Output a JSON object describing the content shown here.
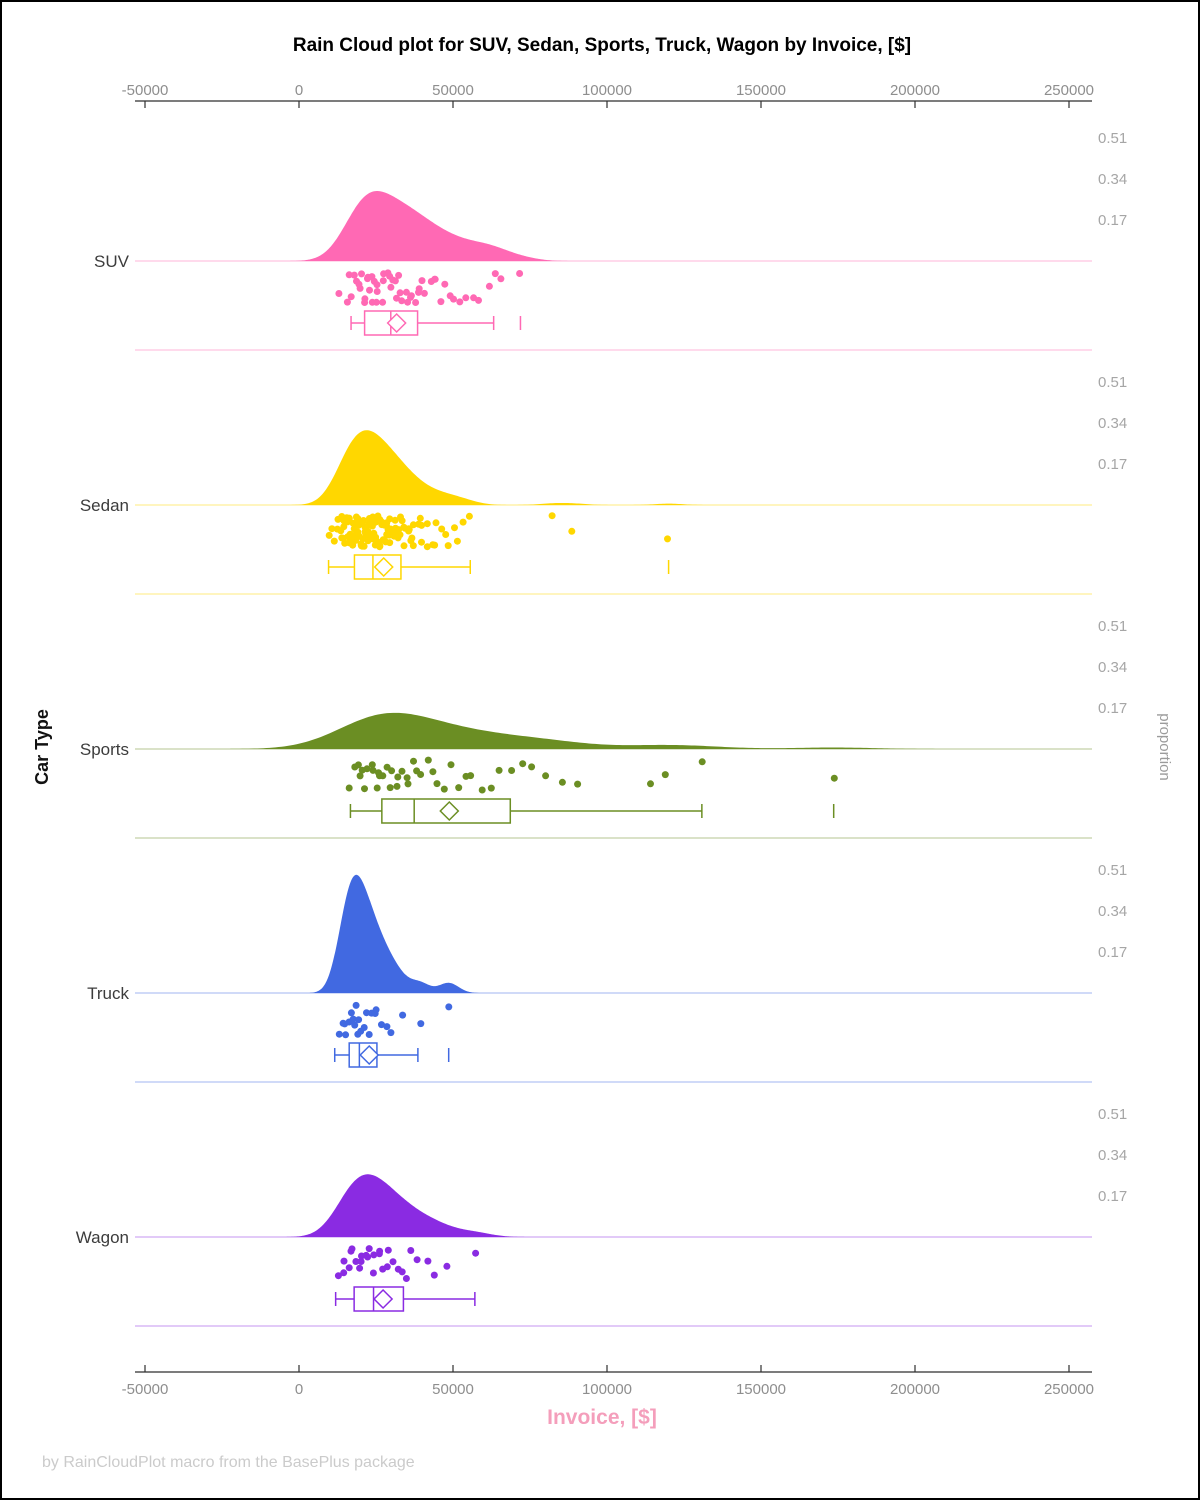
{
  "title": "Rain Cloud plot for SUV, Sedan, Sports, Truck, Wagon by Invoice, [$]",
  "footer": "by RainCloudPlot macro from the BasePlus package",
  "axes": {
    "x_label": "Invoice, [$]",
    "y_left_label": "Car Type",
    "y_right_label": "proportion",
    "x_ticks": [
      -50000,
      0,
      50000,
      100000,
      150000,
      200000,
      250000
    ],
    "proportion_ticks": [
      0.17,
      0.34,
      0.51
    ]
  },
  "colors": {
    "axis_line": "#2F2F2F",
    "tick_label": "#8E8E8E",
    "proportion_label": "#A6A6A6",
    "category_label": "#3C3C3C",
    "title": "#000000",
    "x_label": "#F49EBB",
    "footer": "#CBCBCB",
    "suv": "#FF69B4",
    "sedan": "#FFD700",
    "sports": "#6B8E23",
    "truck": "#4169E1",
    "wagon": "#8A2BE2"
  },
  "chart_data": {
    "type": "raincloud",
    "x_unit": "USD",
    "x_range": [
      -50000,
      250000
    ],
    "categories": [
      {
        "label": "SUV",
        "color": "#FF69B4",
        "peak_proportion": 0.29,
        "kde_bandwidth": 5500,
        "box": {
          "whisker_low": 16900,
          "q1": 21300,
          "median": 29800,
          "mean": 31700,
          "q3": 38500,
          "whisker_high": 63200,
          "outliers": [
            71900
          ]
        },
        "points": [
          13500,
          15200,
          16900,
          17400,
          18100,
          18600,
          19200,
          19800,
          20300,
          20800,
          21300,
          21700,
          22200,
          22800,
          23300,
          23900,
          24400,
          24900,
          25400,
          26000,
          26600,
          27200,
          27900,
          28500,
          29100,
          29800,
          30400,
          31000,
          31700,
          32400,
          33100,
          33800,
          34600,
          35300,
          36100,
          36900,
          37700,
          38500,
          39400,
          40300,
          41200,
          42300,
          43400,
          44600,
          45900,
          47300,
          48800,
          50500,
          52300,
          54300,
          56500,
          58900,
          61600,
          63200,
          65000,
          71900
        ]
      },
      {
        "label": "Sedan",
        "color": "#FFD700",
        "peak_proportion": 0.31,
        "kde_bandwidth": 4500,
        "box": {
          "whisker_low": 9600,
          "q1": 18000,
          "median": 24000,
          "mean": 27500,
          "q3": 33100,
          "whisker_high": 55600,
          "outliers": [
            120000
          ]
        },
        "points": [
          10300,
          11200,
          12000,
          12600,
          13100,
          13400,
          13700,
          14000,
          14300,
          14600,
          14900,
          15100,
          15400,
          15600,
          15900,
          16100,
          16200,
          16400,
          16600,
          16900,
          17000,
          17100,
          17300,
          17600,
          17800,
          18000,
          18200,
          18300,
          18500,
          18700,
          18900,
          19100,
          19300,
          19400,
          19600,
          19800,
          20000,
          20200,
          20400,
          20500,
          20700,
          20900,
          21100,
          21300,
          21500,
          21600,
          21800,
          22000,
          22200,
          22400,
          22500,
          22700,
          22900,
          23100,
          23300,
          23400,
          23600,
          23800,
          24100,
          24300,
          24400,
          24600,
          24800,
          25100,
          25300,
          25400,
          25600,
          25900,
          26100,
          26200,
          26400,
          26700,
          27000,
          27100,
          27300,
          27600,
          27900,
          28000,
          28200,
          28500,
          28800,
          29000,
          29200,
          29500,
          29900,
          30000,
          30200,
          30600,
          31000,
          31200,
          31400,
          31800,
          32200,
          32400,
          32700,
          33100,
          33600,
          33800,
          34100,
          34600,
          35100,
          35400,
          35700,
          36300,
          36900,
          37000,
          37500,
          38200,
          38900,
          39600,
          40400,
          41200,
          42100,
          43000,
          44000,
          45000,
          46200,
          47400,
          48700,
          50100,
          51700,
          53400,
          55600,
          82100,
          88900,
          120000
        ]
      },
      {
        "label": "Sports",
        "color": "#6B8E23",
        "peak_proportion": 0.15,
        "kde_bandwidth": 13000,
        "box": {
          "whisker_low": 16700,
          "q1": 26900,
          "median": 37400,
          "mean": 48800,
          "q3": 68600,
          "whisker_high": 130800,
          "outliers": [
            173600
          ]
        },
        "points": [
          16700,
          18200,
          19400,
          20300,
          21100,
          21900,
          22600,
          23400,
          24100,
          24900,
          25700,
          26500,
          27400,
          28300,
          29200,
          30200,
          31200,
          32300,
          33400,
          34600,
          35800,
          37100,
          38500,
          40000,
          41600,
          43300,
          45100,
          47000,
          49100,
          51300,
          53700,
          56300,
          59100,
          62100,
          65400,
          68600,
          72100,
          76000,
          80300,
          85000,
          90200,
          114300,
          118800,
          130800,
          173600
        ]
      },
      {
        "label": "Truck",
        "color": "#4169E1",
        "peak_proportion": 0.49,
        "kde_bandwidth": 3200,
        "box": {
          "whisker_low": 11600,
          "q1": 16300,
          "median": 19600,
          "mean": 22800,
          "q3": 25300,
          "whisker_high": 38600,
          "outliers": [
            48600
          ]
        },
        "points": [
          13100,
          14200,
          15000,
          15600,
          16200,
          16800,
          17300,
          17900,
          18400,
          19000,
          19600,
          20200,
          20900,
          21600,
          22400,
          23300,
          24300,
          25400,
          26700,
          28200,
          30100,
          33000,
          39200,
          48600
        ]
      },
      {
        "label": "Wagon",
        "color": "#8A2BE2",
        "peak_proportion": 0.26,
        "kde_bandwidth": 5500,
        "box": {
          "whisker_low": 11900,
          "q1": 17900,
          "median": 24200,
          "mean": 27300,
          "q3": 33900,
          "whisker_high": 57100,
          "outliers": []
        },
        "points": [
          12500,
          14000,
          15200,
          16100,
          17000,
          17800,
          18500,
          19300,
          20000,
          20800,
          21500,
          22300,
          23100,
          23900,
          24700,
          25600,
          26500,
          27400,
          28400,
          29500,
          30700,
          32000,
          33400,
          35000,
          36800,
          38900,
          41400,
          44500,
          48500,
          57100
        ]
      }
    ]
  }
}
